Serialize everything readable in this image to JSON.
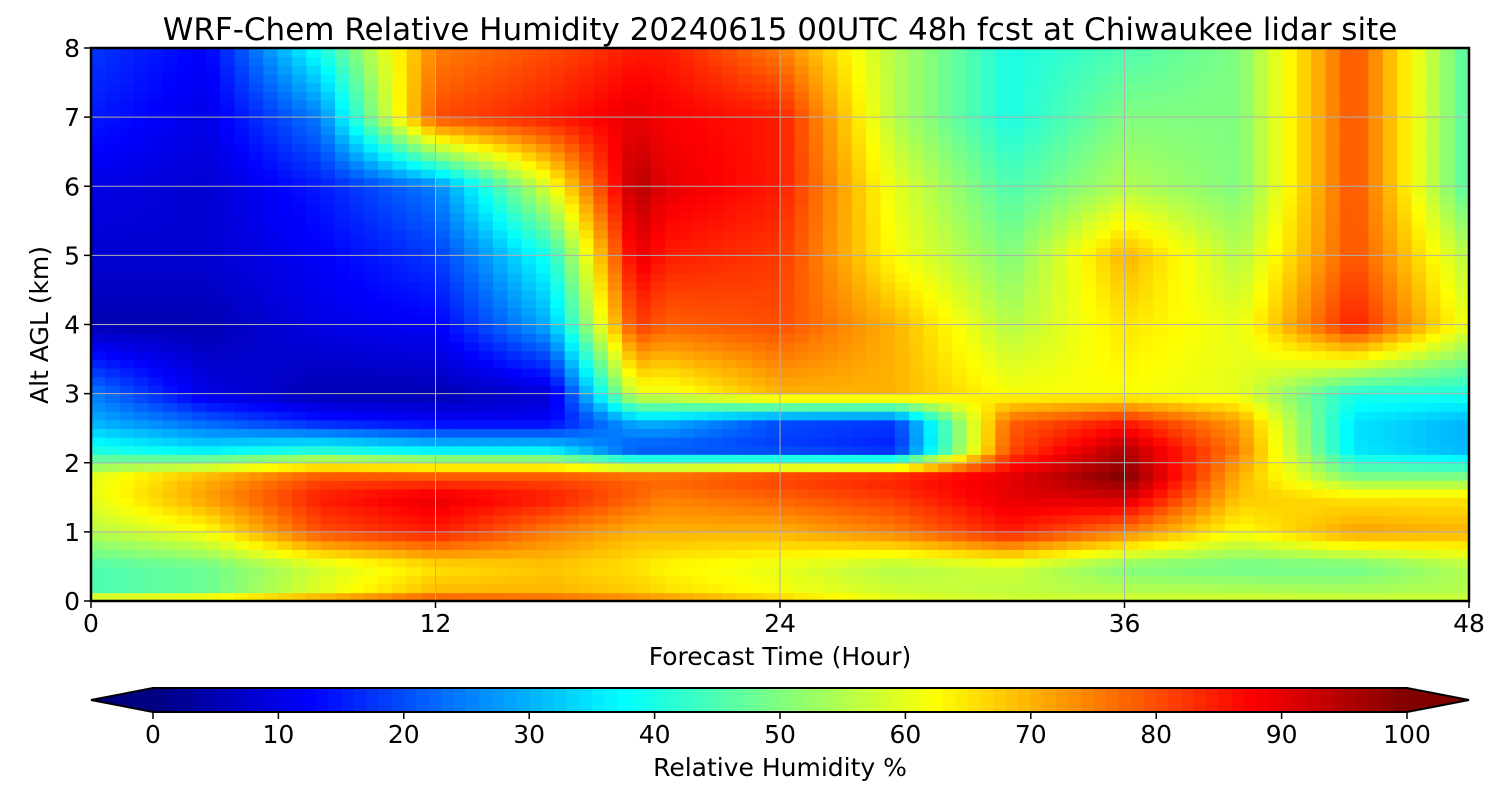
{
  "chart_data": {
    "type": "heatmap",
    "title": "WRF-Chem Relative Humidity 20240615 00UTC 48h fcst at Chiwaukee lidar site",
    "xlabel": "Forecast Time (Hour)",
    "ylabel": "Alt AGL (km)",
    "xlim": [
      0,
      48
    ],
    "ylim": [
      0,
      8
    ],
    "xticks": [
      "0",
      "12",
      "24",
      "36",
      "48"
    ],
    "yticks": [
      "0",
      "1",
      "2",
      "3",
      "4",
      "5",
      "6",
      "7",
      "8"
    ],
    "grid": true,
    "colormap": "jet",
    "colorbar": {
      "label": "Relative Humidity %",
      "range": [
        0,
        100
      ],
      "ticks": [
        "0",
        "10",
        "20",
        "30",
        "40",
        "50",
        "60",
        "70",
        "80",
        "90",
        "100"
      ],
      "extend": "both",
      "placement": "bottom"
    },
    "x": [
      0,
      4,
      8,
      12,
      16,
      19,
      20,
      24,
      28,
      32,
      36,
      40,
      44,
      48
    ],
    "y": [
      0,
      0.1,
      0.5,
      1,
      1.5,
      1.8,
      2.2,
      2.6,
      3,
      4,
      5,
      6,
      7,
      8
    ],
    "z": [
      [
        80,
        82,
        85,
        88,
        85,
        80,
        80,
        72,
        62,
        60,
        60,
        60,
        60,
        60
      ],
      [
        45,
        48,
        60,
        70,
        70,
        68,
        66,
        62,
        58,
        56,
        56,
        56,
        55,
        55
      ],
      [
        45,
        48,
        58,
        65,
        68,
        65,
        63,
        60,
        55,
        58,
        50,
        48,
        48,
        55
      ],
      [
        55,
        62,
        80,
        85,
        75,
        70,
        70,
        70,
        75,
        85,
        75,
        62,
        72,
        70
      ],
      [
        60,
        72,
        85,
        90,
        85,
        78,
        75,
        78,
        82,
        90,
        92,
        68,
        65,
        65
      ],
      [
        60,
        70,
        80,
        80,
        80,
        78,
        78,
        82,
        85,
        90,
        100,
        70,
        50,
        50
      ],
      [
        40,
        35,
        40,
        35,
        35,
        20,
        20,
        18,
        15,
        80,
        95,
        75,
        35,
        30
      ],
      [
        30,
        22,
        15,
        12,
        12,
        30,
        30,
        20,
        18,
        78,
        85,
        72,
        35,
        30
      ],
      [
        25,
        10,
        5,
        5,
        8,
        60,
        60,
        70,
        70,
        62,
        62,
        60,
        40,
        40
      ],
      [
        5,
        5,
        10,
        12,
        30,
        82,
        78,
        80,
        70,
        55,
        65,
        60,
        85,
        60
      ],
      [
        8,
        8,
        12,
        18,
        40,
        90,
        85,
        82,
        62,
        50,
        70,
        55,
        80,
        55
      ],
      [
        10,
        8,
        15,
        25,
        60,
        95,
        90,
        85,
        60,
        45,
        55,
        50,
        80,
        45
      ],
      [
        15,
        10,
        25,
        80,
        85,
        90,
        88,
        85,
        55,
        40,
        50,
        50,
        80,
        45
      ],
      [
        18,
        12,
        40,
        75,
        80,
        85,
        85,
        75,
        55,
        40,
        45,
        50,
        80,
        45
      ]
    ]
  }
}
